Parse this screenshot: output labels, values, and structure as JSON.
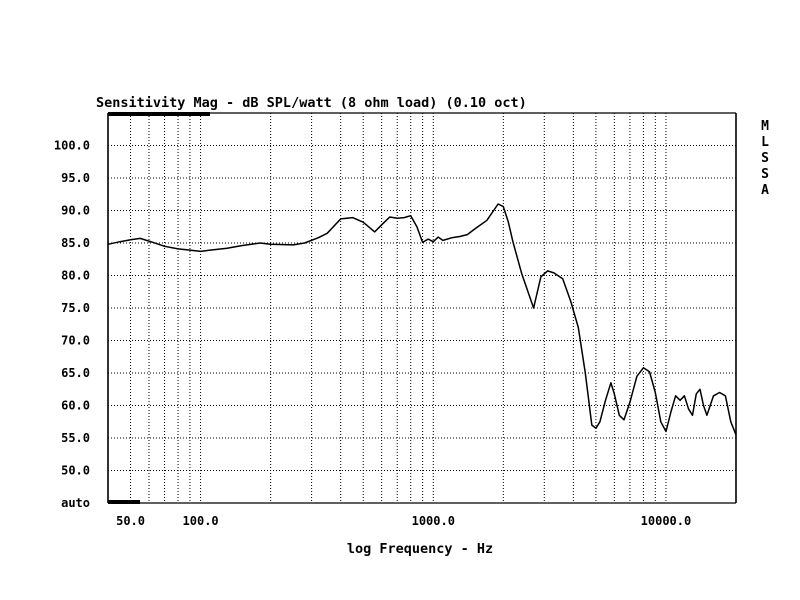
{
  "chart_data": {
    "type": "line",
    "title": "Sensitivity Mag - dB SPL/watt (8 ohm load) (0.10 oct)",
    "xlabel": "log Frequency - Hz",
    "ylabel": "",
    "x_scale": "log",
    "xlim": [
      40,
      20000
    ],
    "ylim": [
      45,
      105
    ],
    "grid": true,
    "y_ticks": [
      {
        "value": 100,
        "label": "100.0"
      },
      {
        "value": 95,
        "label": "95.0"
      },
      {
        "value": 90,
        "label": "90.0"
      },
      {
        "value": 85,
        "label": "85.0"
      },
      {
        "value": 80,
        "label": "80.0"
      },
      {
        "value": 75,
        "label": "75.0"
      },
      {
        "value": 70,
        "label": "70.0"
      },
      {
        "value": 65,
        "label": "65.0"
      },
      {
        "value": 60,
        "label": "60.0"
      },
      {
        "value": 55,
        "label": "55.0"
      },
      {
        "value": 50,
        "label": "50.0"
      },
      {
        "value": 45,
        "label": "auto"
      }
    ],
    "x_ticks": [
      {
        "value": 50,
        "label": "50.0"
      },
      {
        "value": 100,
        "label": "100.0"
      },
      {
        "value": 1000,
        "label": "1000.0"
      },
      {
        "value": 10000,
        "label": "10000.0"
      }
    ],
    "side_letters": [
      "M",
      "L",
      "S",
      "S",
      "A"
    ],
    "series": [
      {
        "color": "#000000",
        "x": [
          40,
          45,
          50,
          55,
          60,
          70,
          80,
          90,
          100,
          110,
          130,
          150,
          180,
          200,
          250,
          280,
          320,
          350,
          400,
          450,
          500,
          560,
          600,
          650,
          700,
          750,
          800,
          850,
          900,
          950,
          1000,
          1050,
          1100,
          1200,
          1300,
          1400,
          1500,
          1700,
          1900,
          2000,
          2100,
          2200,
          2400,
          2700,
          2900,
          3100,
          3300,
          3600,
          3900,
          4200,
          4500,
          4800,
          5000,
          5200,
          5500,
          5800,
          6000,
          6300,
          6600,
          7000,
          7500,
          8000,
          8500,
          9000,
          9500,
          10000,
          10500,
          11000,
          11500,
          12000,
          12500,
          13000,
          13500,
          14000,
          14500,
          15000,
          16000,
          17000,
          18000,
          18500,
          19000,
          20000
        ],
        "y": [
          84.8,
          85.2,
          85.5,
          85.7,
          85.3,
          84.5,
          84.1,
          83.9,
          83.7,
          83.9,
          84.2,
          84.6,
          85.0,
          84.8,
          84.7,
          85.0,
          85.8,
          86.5,
          88.7,
          88.9,
          88.2,
          86.7,
          87.8,
          89.0,
          88.8,
          88.9,
          89.2,
          87.5,
          85.1,
          85.6,
          85.2,
          85.9,
          85.4,
          85.8,
          86.0,
          86.3,
          87.1,
          88.5,
          91.0,
          90.6,
          88.3,
          85.2,
          80.3,
          75.0,
          79.8,
          80.7,
          80.4,
          79.5,
          76.0,
          72.0,
          65.0,
          57.0,
          56.5,
          57.5,
          60.8,
          63.5,
          61.8,
          58.5,
          57.8,
          60.5,
          64.5,
          65.8,
          65.2,
          62.0,
          57.5,
          56.0,
          59.0,
          61.5,
          60.8,
          61.5,
          59.5,
          58.5,
          61.8,
          62.5,
          60.0,
          58.5,
          61.5,
          62.0,
          61.5,
          59.5,
          57.5,
          55.5
        ]
      }
    ]
  }
}
